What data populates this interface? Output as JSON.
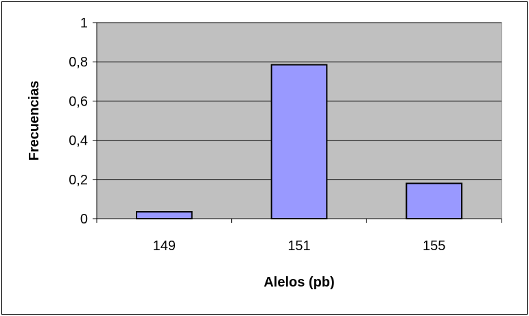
{
  "chart_data": {
    "type": "bar",
    "categories": [
      "149",
      "151",
      "155"
    ],
    "values": [
      0.035,
      0.785,
      0.18
    ],
    "title": "",
    "xlabel": "Alelos (pb)",
    "ylabel": "Frecuencias",
    "ylim": [
      0,
      1
    ],
    "yticks": [
      0,
      0.2,
      0.4,
      0.6,
      0.8,
      1
    ],
    "ytick_labels": [
      "0",
      "0,2",
      "0,4",
      "0,6",
      "0,8",
      "1"
    ],
    "grid": true,
    "legend": "none",
    "colors": {
      "plot_background": "#c0c0c0",
      "bar_fill": "#9999ff",
      "bar_stroke": "#000000",
      "gridline": "#000000"
    }
  }
}
